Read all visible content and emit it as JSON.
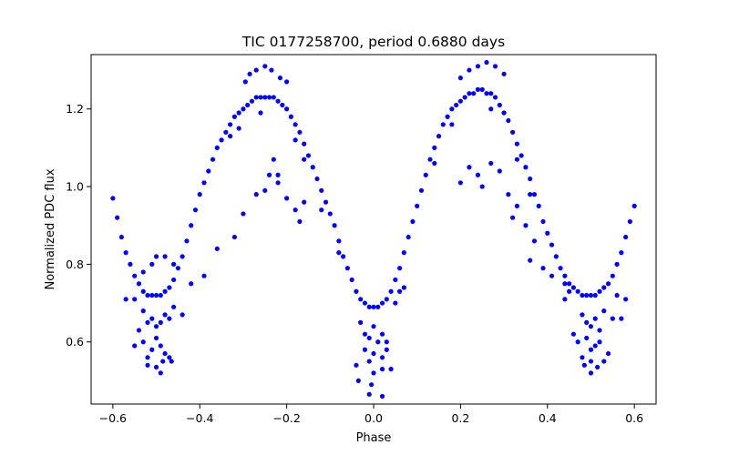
{
  "chart_data": {
    "type": "scatter",
    "title": "TIC 0177258700, period 0.6880 days",
    "xlabel": "Phase",
    "ylabel": "Normalized PDC flux",
    "xlim": [
      -0.65,
      0.65
    ],
    "ylim": [
      0.44,
      1.34
    ],
    "xticks": [
      -0.6,
      -0.4,
      -0.2,
      0.0,
      0.2,
      0.4,
      0.6
    ],
    "xtick_labels": [
      "−0.6",
      "−0.4",
      "−0.2",
      "0.0",
      "0.2",
      "0.4",
      "0.6"
    ],
    "yticks": [
      0.6,
      0.8,
      1.0,
      1.2
    ],
    "ytick_labels": [
      "0.6",
      "0.8",
      "1.0",
      "1.2"
    ],
    "grid": false,
    "legend": "none",
    "marker_color": "#0000ff",
    "series": [
      {
        "points": [
          [
            -0.6,
            0.97
          ],
          [
            -0.59,
            0.92
          ],
          [
            -0.58,
            0.87
          ],
          [
            -0.57,
            0.83
          ],
          [
            -0.56,
            0.8
          ],
          [
            -0.55,
            0.77
          ],
          [
            -0.54,
            0.75
          ],
          [
            -0.53,
            0.73
          ],
          [
            -0.52,
            0.72
          ],
          [
            -0.51,
            0.72
          ],
          [
            -0.5,
            0.72
          ],
          [
            -0.49,
            0.72
          ],
          [
            -0.48,
            0.73
          ],
          [
            -0.47,
            0.74
          ],
          [
            -0.46,
            0.76
          ],
          [
            -0.45,
            0.79
          ],
          [
            -0.44,
            0.82
          ],
          [
            -0.43,
            0.86
          ],
          [
            -0.42,
            0.9
          ],
          [
            -0.41,
            0.94
          ],
          [
            -0.4,
            0.98
          ],
          [
            -0.39,
            1.01
          ],
          [
            -0.38,
            1.04
          ],
          [
            -0.37,
            1.07
          ],
          [
            -0.36,
            1.1
          ],
          [
            -0.35,
            1.12
          ],
          [
            -0.34,
            1.14
          ],
          [
            -0.33,
            1.16
          ],
          [
            -0.32,
            1.18
          ],
          [
            -0.31,
            1.19
          ],
          [
            -0.3,
            1.2
          ],
          [
            -0.29,
            1.21
          ],
          [
            -0.28,
            1.22
          ],
          [
            -0.27,
            1.23
          ],
          [
            -0.26,
            1.23
          ],
          [
            -0.25,
            1.23
          ],
          [
            -0.24,
            1.23
          ],
          [
            -0.23,
            1.23
          ],
          [
            -0.22,
            1.22
          ],
          [
            -0.21,
            1.21
          ],
          [
            -0.2,
            1.2
          ],
          [
            -0.19,
            1.18
          ],
          [
            -0.18,
            1.16
          ],
          [
            -0.17,
            1.14
          ],
          [
            -0.16,
            1.11
          ],
          [
            -0.15,
            1.08
          ],
          [
            -0.14,
            1.05
          ],
          [
            -0.13,
            1.02
          ],
          [
            -0.12,
            0.99
          ],
          [
            -0.11,
            0.96
          ],
          [
            -0.1,
            0.93
          ],
          [
            -0.09,
            0.9
          ],
          [
            -0.08,
            0.86
          ],
          [
            -0.07,
            0.82
          ],
          [
            -0.06,
            0.79
          ],
          [
            -0.05,
            0.76
          ],
          [
            -0.04,
            0.73
          ],
          [
            -0.03,
            0.71
          ],
          [
            -0.02,
            0.7
          ],
          [
            -0.01,
            0.69
          ],
          [
            0.0,
            0.69
          ],
          [
            0.01,
            0.69
          ],
          [
            0.02,
            0.7
          ],
          [
            0.03,
            0.71
          ],
          [
            0.04,
            0.73
          ],
          [
            0.05,
            0.76
          ],
          [
            0.06,
            0.79
          ],
          [
            0.07,
            0.83
          ],
          [
            0.08,
            0.87
          ],
          [
            0.09,
            0.91
          ],
          [
            0.1,
            0.95
          ],
          [
            0.11,
            0.99
          ],
          [
            0.12,
            1.03
          ],
          [
            0.13,
            1.07
          ],
          [
            0.14,
            1.1
          ],
          [
            0.15,
            1.13
          ],
          [
            0.16,
            1.16
          ],
          [
            0.17,
            1.18
          ],
          [
            0.18,
            1.2
          ],
          [
            0.19,
            1.21
          ],
          [
            0.2,
            1.22
          ],
          [
            0.21,
            1.23
          ],
          [
            0.22,
            1.24
          ],
          [
            0.23,
            1.24
          ],
          [
            0.24,
            1.25
          ],
          [
            0.25,
            1.25
          ],
          [
            0.26,
            1.24
          ],
          [
            0.27,
            1.24
          ],
          [
            0.28,
            1.23
          ],
          [
            0.29,
            1.21
          ],
          [
            0.3,
            1.19
          ],
          [
            0.31,
            1.17
          ],
          [
            0.32,
            1.14
          ],
          [
            0.33,
            1.11
          ],
          [
            0.34,
            1.08
          ],
          [
            0.35,
            1.05
          ],
          [
            0.36,
            1.02
          ],
          [
            0.37,
            0.98
          ],
          [
            0.38,
            0.95
          ],
          [
            0.39,
            0.91
          ],
          [
            0.4,
            0.88
          ],
          [
            0.41,
            0.85
          ],
          [
            0.42,
            0.82
          ],
          [
            0.43,
            0.79
          ],
          [
            0.44,
            0.77
          ],
          [
            0.45,
            0.75
          ],
          [
            0.46,
            0.74
          ],
          [
            0.47,
            0.73
          ],
          [
            0.48,
            0.72
          ],
          [
            0.49,
            0.72
          ],
          [
            0.5,
            0.72
          ],
          [
            0.51,
            0.72
          ],
          [
            0.52,
            0.73
          ],
          [
            0.53,
            0.74
          ],
          [
            0.54,
            0.75
          ],
          [
            0.55,
            0.77
          ],
          [
            0.56,
            0.8
          ],
          [
            0.57,
            0.83
          ],
          [
            0.58,
            0.87
          ],
          [
            0.59,
            0.91
          ],
          [
            0.6,
            0.95
          ],
          [
            -0.295,
            1.27
          ],
          [
            -0.285,
            1.29
          ],
          [
            -0.27,
            1.3
          ],
          [
            -0.25,
            1.31
          ],
          [
            -0.235,
            1.3
          ],
          [
            -0.215,
            1.28
          ],
          [
            -0.2,
            1.27
          ],
          [
            0.2,
            1.28
          ],
          [
            0.22,
            1.3
          ],
          [
            0.24,
            1.31
          ],
          [
            0.26,
            1.32
          ],
          [
            0.28,
            1.31
          ],
          [
            0.3,
            1.29
          ],
          [
            -0.33,
            1.13
          ],
          [
            -0.31,
            1.15
          ],
          [
            -0.26,
            1.19
          ],
          [
            -0.18,
            1.12
          ],
          [
            -0.16,
            1.07
          ],
          [
            0.14,
            1.06
          ],
          [
            0.18,
            1.16
          ],
          [
            0.27,
            1.2
          ],
          [
            0.33,
            1.07
          ],
          [
            0.36,
            0.98
          ],
          [
            -0.12,
            0.94
          ],
          [
            -0.08,
            0.83
          ],
          [
            -0.55,
            0.71
          ],
          [
            -0.57,
            0.71
          ],
          [
            -0.53,
            0.68
          ],
          [
            -0.52,
            0.65
          ],
          [
            -0.51,
            0.66
          ],
          [
            -0.5,
            0.64
          ],
          [
            -0.49,
            0.65
          ],
          [
            -0.48,
            0.67
          ],
          [
            -0.47,
            0.66
          ],
          [
            -0.46,
            0.69
          ],
          [
            -0.44,
            0.67
          ],
          [
            -0.54,
            0.63
          ],
          [
            -0.53,
            0.6
          ],
          [
            -0.51,
            0.58
          ],
          [
            -0.5,
            0.61
          ],
          [
            -0.49,
            0.59
          ],
          [
            -0.48,
            0.57
          ],
          [
            -0.55,
            0.59
          ],
          [
            -0.52,
            0.56
          ],
          [
            -0.485,
            0.55
          ],
          [
            -0.47,
            0.56
          ],
          [
            -0.52,
            0.54
          ],
          [
            -0.5,
            0.535
          ],
          [
            -0.49,
            0.52
          ],
          [
            -0.465,
            0.55
          ],
          [
            -0.5,
            0.82
          ],
          [
            -0.51,
            0.8
          ],
          [
            -0.48,
            0.82
          ],
          [
            -0.46,
            0.8
          ],
          [
            -0.53,
            0.78
          ],
          [
            -0.03,
            0.65
          ],
          [
            -0.02,
            0.62
          ],
          [
            -0.01,
            0.61
          ],
          [
            0.0,
            0.64
          ],
          [
            0.01,
            0.6
          ],
          [
            0.02,
            0.62
          ],
          [
            0.03,
            0.6
          ],
          [
            -0.02,
            0.58
          ],
          [
            0.0,
            0.57
          ],
          [
            0.02,
            0.56
          ],
          [
            -0.01,
            0.55
          ],
          [
            0.03,
            0.58
          ],
          [
            -0.04,
            0.54
          ],
          [
            0.0,
            0.52
          ],
          [
            0.02,
            0.53
          ],
          [
            -0.005,
            0.49
          ],
          [
            0.04,
            0.53
          ],
          [
            -0.035,
            0.5
          ],
          [
            -0.01,
            0.465
          ],
          [
            0.02,
            0.46
          ],
          [
            0.05,
            0.7
          ],
          [
            0.06,
            0.73
          ],
          [
            0.07,
            0.74
          ],
          [
            0.48,
            0.67
          ],
          [
            0.49,
            0.65
          ],
          [
            0.5,
            0.64
          ],
          [
            0.51,
            0.66
          ],
          [
            0.52,
            0.63
          ],
          [
            0.53,
            0.68
          ],
          [
            0.47,
            0.6
          ],
          [
            0.49,
            0.61
          ],
          [
            0.5,
            0.58
          ],
          [
            0.51,
            0.59
          ],
          [
            0.52,
            0.6
          ],
          [
            0.54,
            0.57
          ],
          [
            0.46,
            0.62
          ],
          [
            0.48,
            0.56
          ],
          [
            0.5,
            0.55
          ],
          [
            0.53,
            0.55
          ],
          [
            0.485,
            0.54
          ],
          [
            0.515,
            0.535
          ],
          [
            0.5,
            0.52
          ],
          [
            0.55,
            0.66
          ],
          [
            0.57,
            0.66
          ],
          [
            0.45,
            0.73
          ],
          [
            0.44,
            0.71
          ],
          [
            0.56,
            0.72
          ],
          [
            0.58,
            0.71
          ],
          [
            -0.23,
            1.07
          ],
          [
            -0.24,
            1.03
          ],
          [
            -0.22,
            1.01
          ],
          [
            -0.25,
            0.99
          ],
          [
            -0.2,
            0.97
          ],
          [
            -0.27,
            0.98
          ],
          [
            -0.16,
            0.96
          ],
          [
            -0.18,
            0.94
          ],
          [
            -0.17,
            0.91
          ],
          [
            -0.22,
            1.03
          ],
          [
            -0.3,
            0.93
          ],
          [
            -0.32,
            0.87
          ],
          [
            -0.36,
            0.84
          ],
          [
            -0.39,
            0.77
          ],
          [
            -0.42,
            0.75
          ],
          [
            0.22,
            1.05
          ],
          [
            0.24,
            1.03
          ],
          [
            0.2,
            1.01
          ],
          [
            0.27,
            1.06
          ],
          [
            0.29,
            1.04
          ],
          [
            0.25,
            1.0
          ],
          [
            0.31,
            0.98
          ],
          [
            0.33,
            0.95
          ],
          [
            0.35,
            0.9
          ],
          [
            0.39,
            0.79
          ],
          [
            0.41,
            0.77
          ],
          [
            0.44,
            0.75
          ],
          [
            0.32,
            0.92
          ],
          [
            0.37,
            0.86
          ],
          [
            0.36,
            0.81
          ]
        ]
      }
    ]
  }
}
